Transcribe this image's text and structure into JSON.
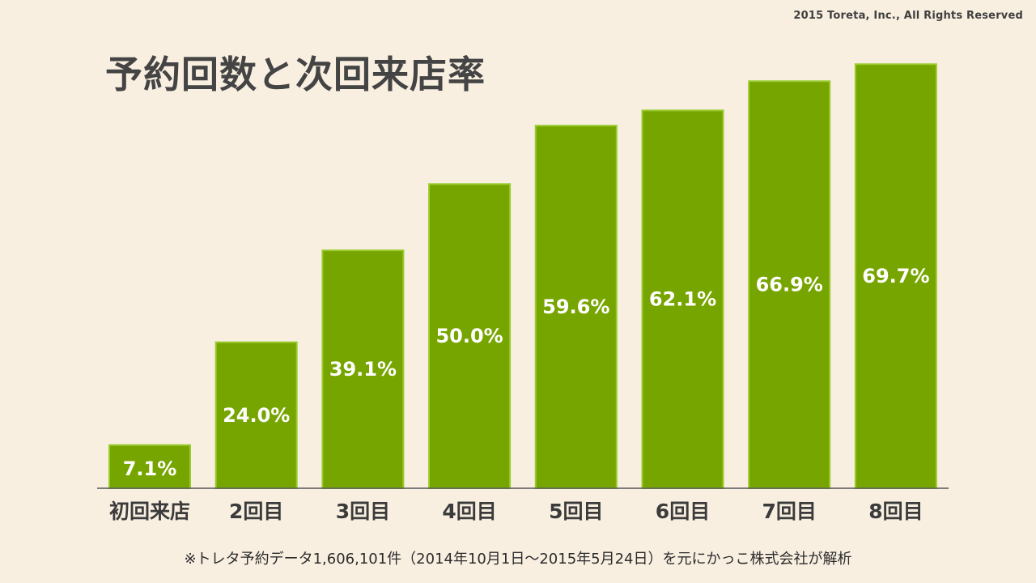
{
  "copyright": "2015 Toreta, Inc., All Rights Reserved",
  "title": "予約回数と次回来店率",
  "footnote": "※トレタ予約データ1,606,101件（2014年10月1日〜2015年5月24日）を元にかっこ株式会社が解析",
  "colors": {
    "bar_fill": "#77a500",
    "bar_border": "#9acb2e",
    "value_text": "#ffffff",
    "category_text": "#3b3b3b",
    "baseline": "#555555"
  },
  "chart_data": {
    "type": "bar",
    "title": "予約回数と次回来店率",
    "categories": [
      "初回来店",
      "2回目",
      "3回目",
      "4回目",
      "5回目",
      "6回目",
      "7回目",
      "8回目"
    ],
    "values": [
      7.1,
      24.0,
      39.1,
      50.0,
      59.6,
      62.1,
      66.9,
      69.7
    ],
    "value_labels": [
      "7.1%",
      "24.0%",
      "39.1%",
      "50.0%",
      "59.6%",
      "62.1%",
      "66.9%",
      "69.7%"
    ],
    "xlabel": "",
    "ylabel": "",
    "ylim": [
      0,
      70
    ],
    "grid": false,
    "legend": "none"
  }
}
